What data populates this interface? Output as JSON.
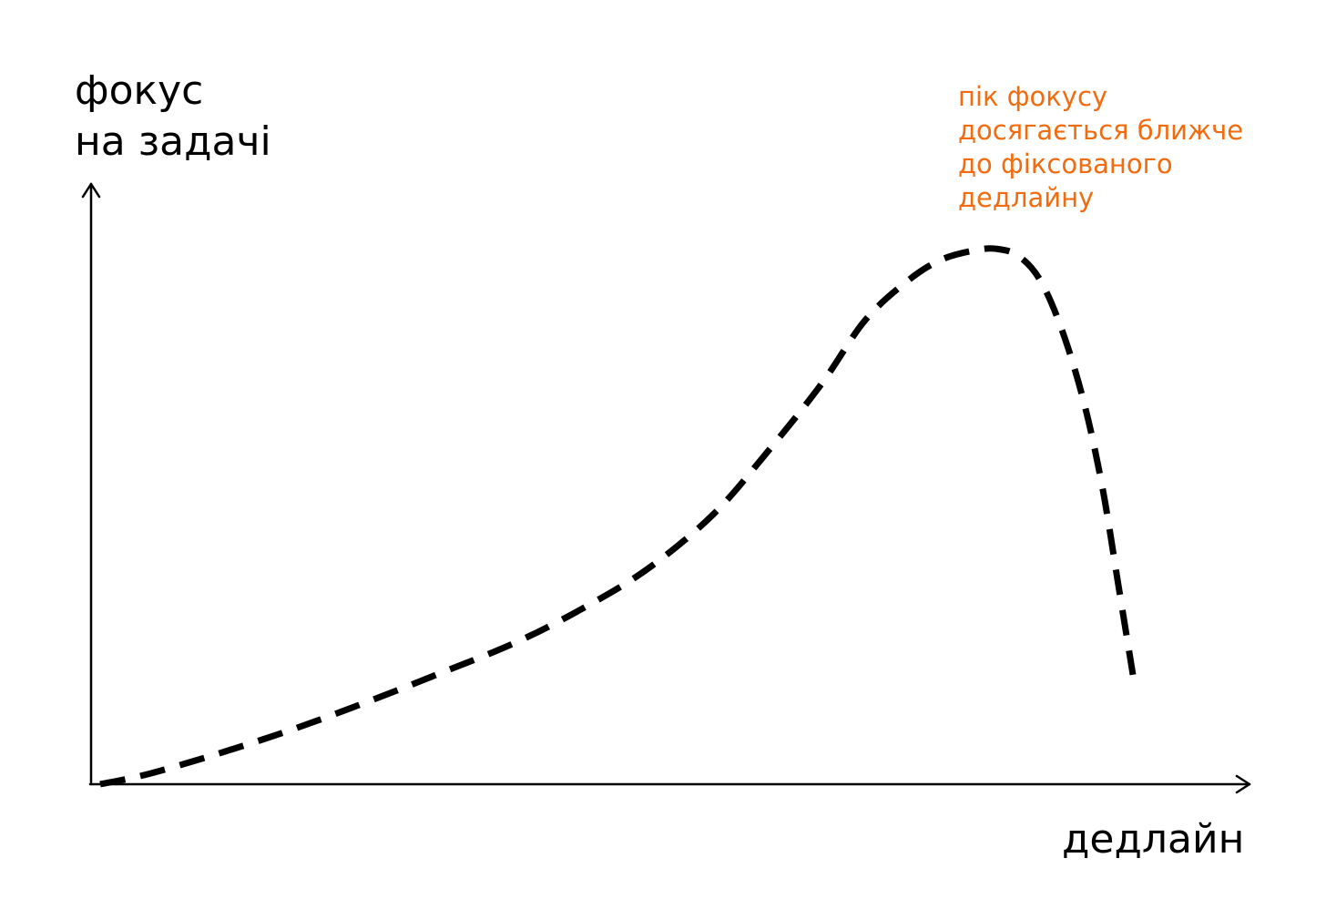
{
  "chart_data": {
    "type": "line",
    "title": "",
    "ylabel_lines": [
      "фокус",
      "на задачі"
    ],
    "xlabel": "дедлайн",
    "annotation_lines": [
      "пік фокусу",
      "досягається ближче",
      "до фіксованого",
      "дедлайну"
    ],
    "xlim": [
      0,
      100
    ],
    "ylim": [
      0,
      100
    ],
    "grid": false,
    "axis_ticks": false,
    "line_style": "dashed",
    "series": [
      {
        "color": "#000000",
        "x": [
          0,
          4,
          10,
          17,
          24,
          31,
          38,
          44,
          50,
          56,
          61,
          66,
          70,
          74,
          77,
          80,
          82,
          84,
          86,
          88,
          90,
          91.7,
          93.2,
          94.5
        ],
        "y": [
          0,
          1.7,
          5.2,
          9.8,
          15.0,
          20.6,
          26.4,
          32.6,
          40.0,
          50.1,
          61.8,
          74.6,
          86.5,
          94.0,
          97.8,
          99.5,
          99.8,
          98.5,
          94.0,
          84.7,
          71.3,
          55.4,
          36.7,
          20.4
        ]
      }
    ],
    "colors": {
      "axis": "#000000",
      "annotation": "#f26b0f"
    }
  }
}
